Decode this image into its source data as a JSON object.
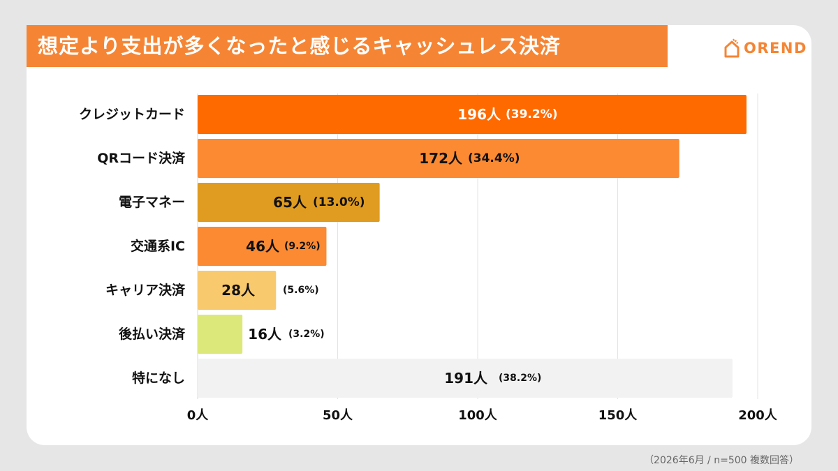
{
  "title": "想定より支出が多くなったと感じるキャッシュレス決済",
  "logo": {
    "text": "OREND",
    "icon": "house-icon"
  },
  "footnote": "（2026年6月 / n=500 複数回答）",
  "chart_data": {
    "type": "bar",
    "orientation": "horizontal",
    "categories": [
      "クレジットカード",
      "QRコード決済",
      "電子マネー",
      "交通系IC",
      "キャリア決済",
      "後払い決済",
      "特になし"
    ],
    "values": [
      196,
      172,
      65,
      46,
      28,
      16,
      191
    ],
    "value_labels": [
      "196人",
      "172人",
      "65人",
      "46人",
      "28人",
      "16人",
      "191人"
    ],
    "percent_labels": [
      "(39.2%)",
      "(34.4%)",
      "(13.0%)",
      "(9.2%)",
      "(5.6%)",
      "(3.2%)",
      "(38.2%)"
    ],
    "colors": [
      "#ff6a00",
      "#fb8a33",
      "#e09c20",
      "#fb8a33",
      "#f9c96e",
      "#dde87a",
      "#f2f2f2"
    ],
    "label_colors": [
      "#ffffff",
      "#111111",
      "#111111",
      "#111111",
      "#111111",
      "#111111",
      "#111111"
    ],
    "xlim": [
      0,
      200
    ],
    "xticks": [
      0,
      50,
      100,
      150,
      200
    ],
    "xtick_labels": [
      "0人",
      "50人",
      "100人",
      "150人",
      "200人"
    ],
    "grid": true
  }
}
